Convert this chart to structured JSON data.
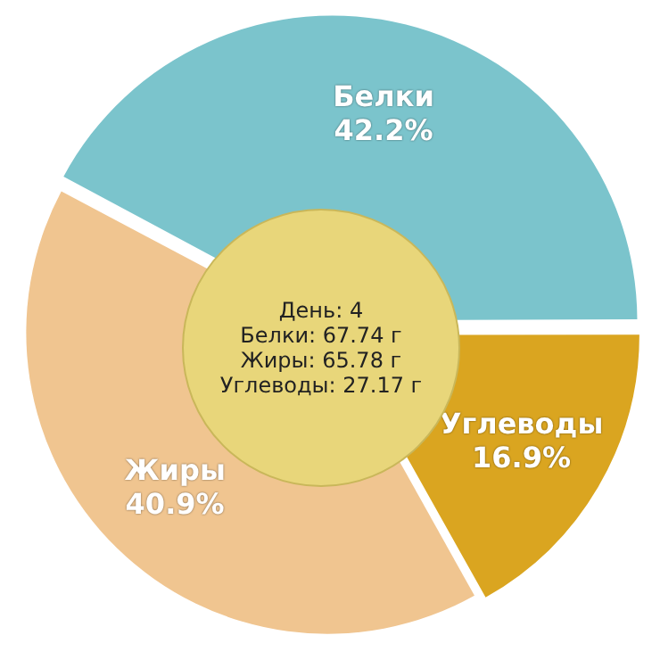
{
  "chart_data": {
    "type": "pie",
    "categories": [
      "Белки",
      "Углеводы",
      "Жиры"
    ],
    "values": [
      42.2,
      16.9,
      40.9
    ],
    "colors": [
      "#7bc4cc",
      "#daa520",
      "#f0c590"
    ],
    "value_labels": [
      "42.2%",
      "16.9%",
      "40.9%"
    ],
    "legend": false,
    "annotations": [
      "День: 4",
      "Белки: 67.74 г",
      "Жиры: 65.78 г",
      "Углеводы: 27.17 г"
    ]
  }
}
